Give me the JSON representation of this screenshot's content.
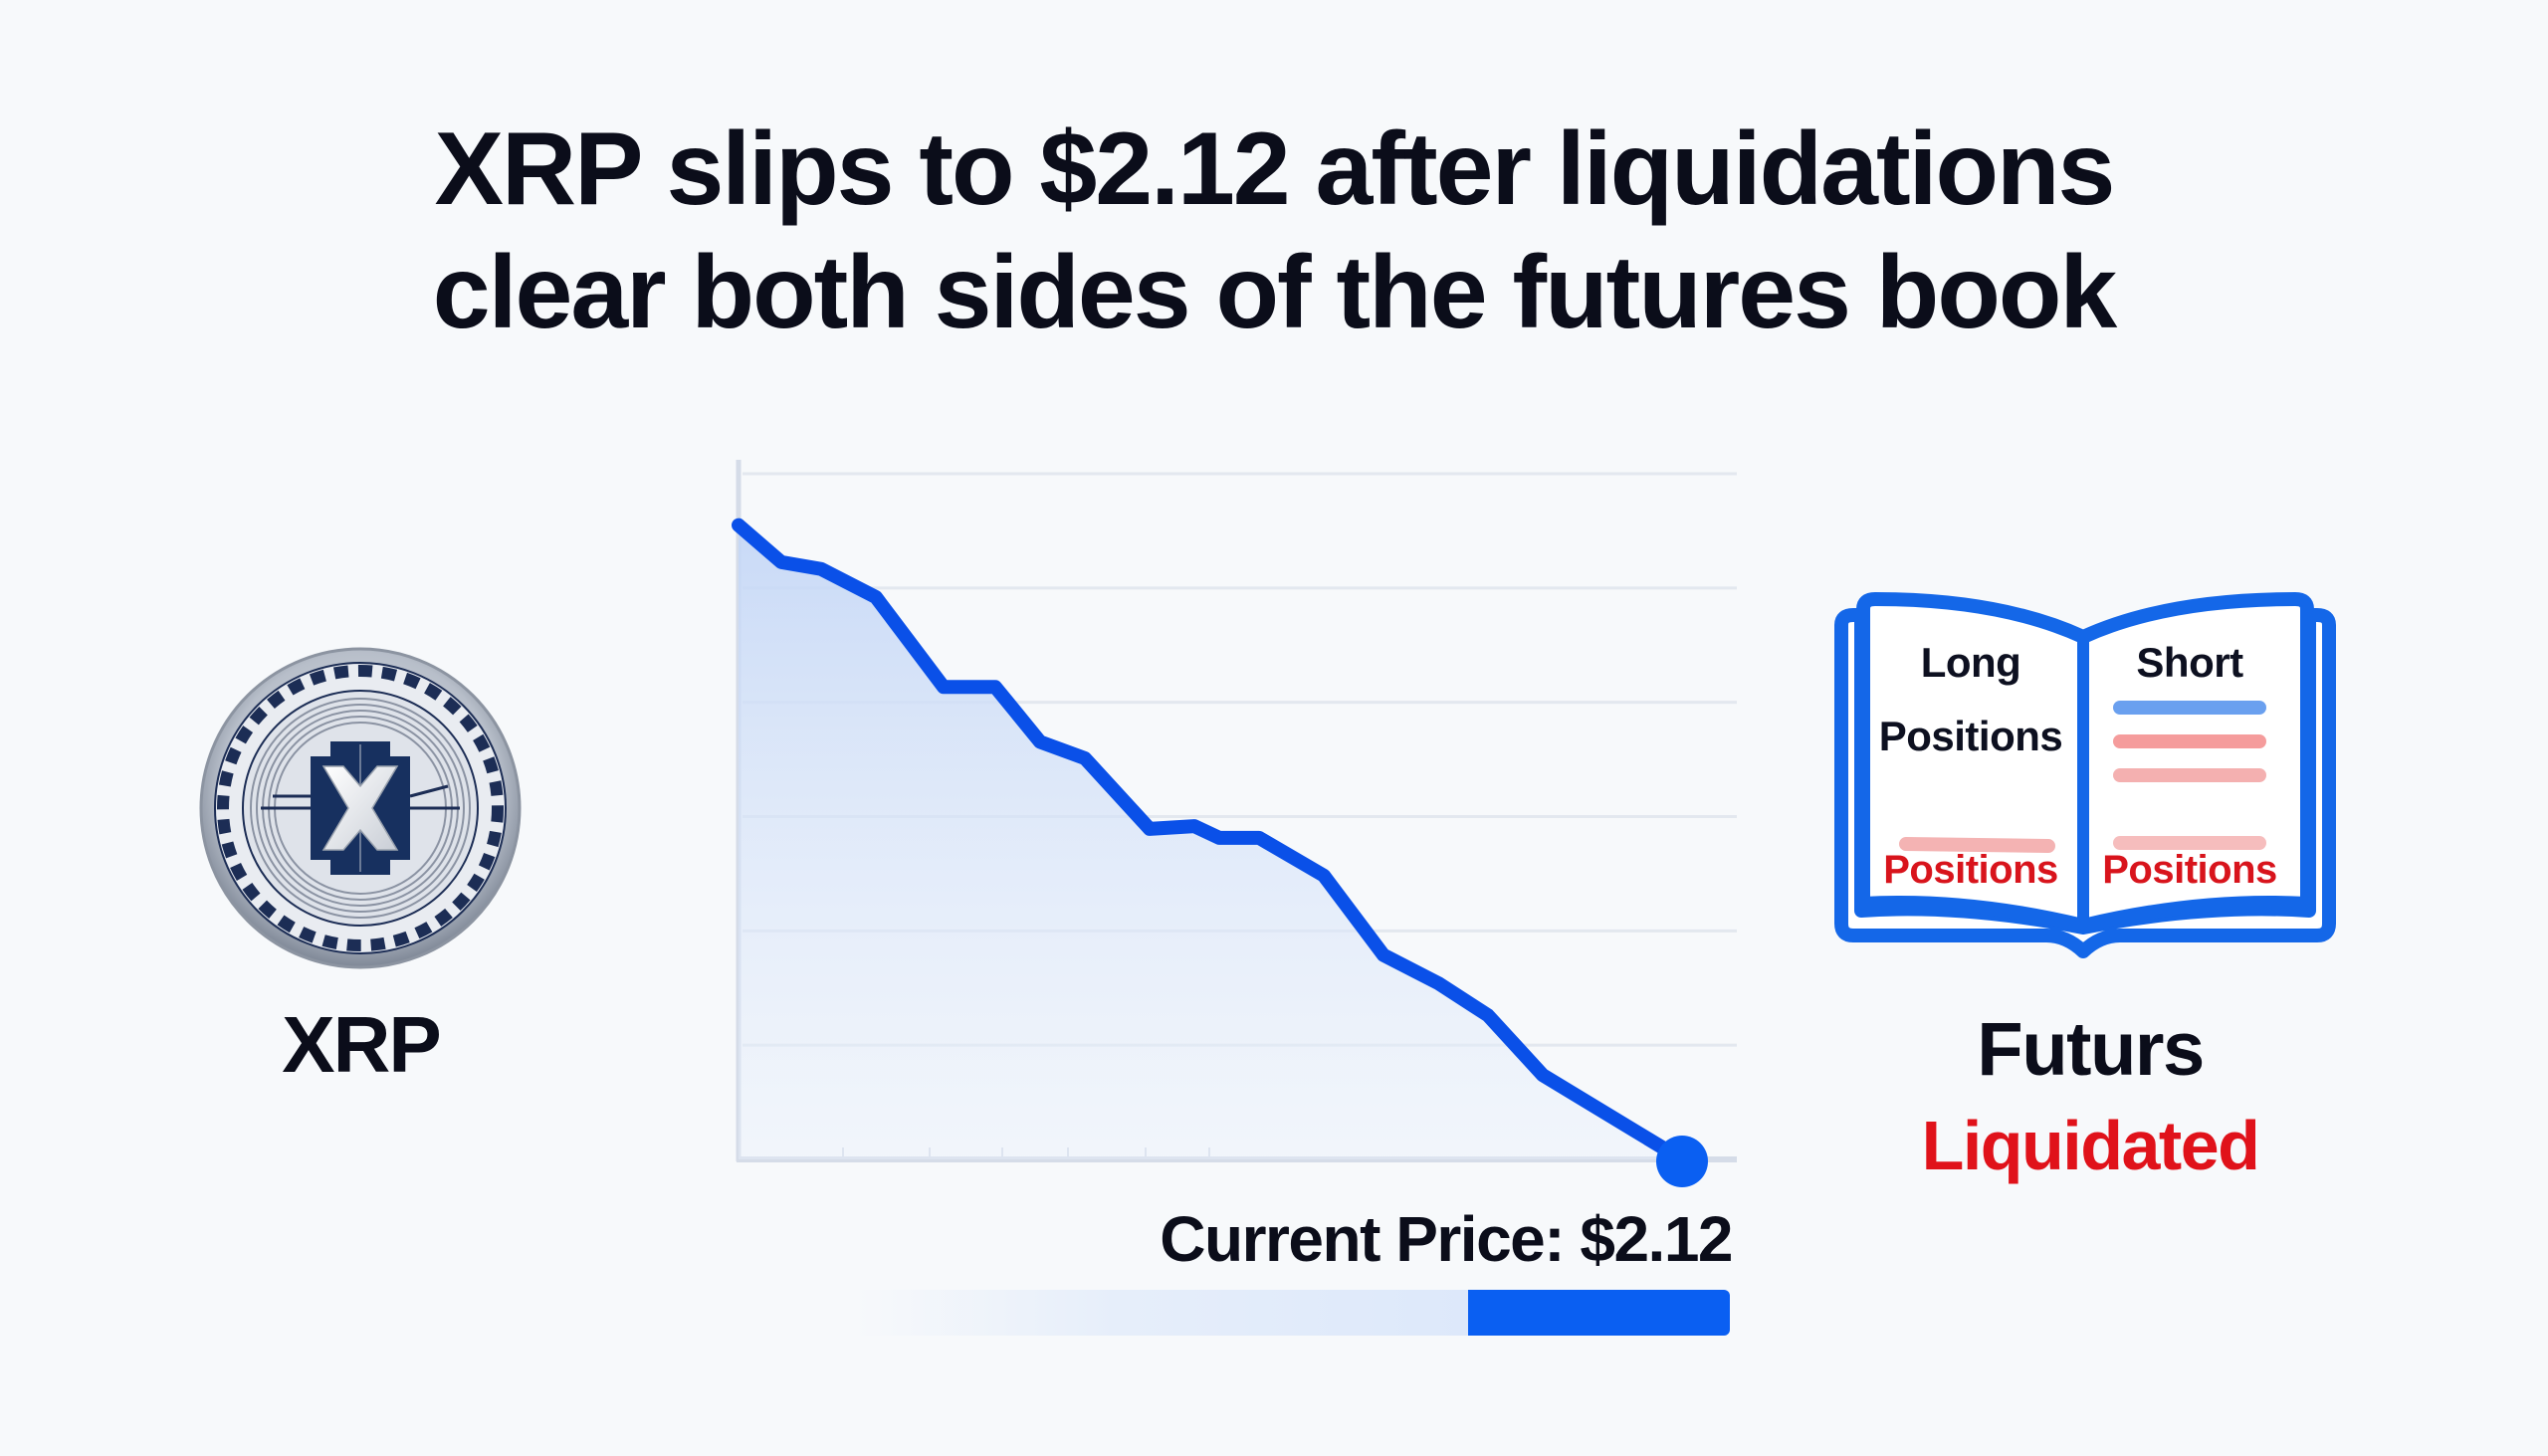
{
  "headline": {
    "line1": "XRP slips to $2.12 after liquidations",
    "line2": "clear both sides of the futures book"
  },
  "coin": {
    "icon": "xrp-coin-icon",
    "label": "XRP"
  },
  "price": {
    "label": "Current Price: $2.12",
    "value": "$2.12",
    "bar_fill_fraction": 0.3
  },
  "book": {
    "icon": "open-book-icon",
    "left_page": {
      "title_line1": "Long",
      "title_line2": "Positions",
      "footer": "Positions"
    },
    "right_page": {
      "title": "Short",
      "footer": "Positions"
    }
  },
  "futures": {
    "label": "Futurs",
    "status": "Liquidated"
  },
  "colors": {
    "background": "#f7f9fb",
    "line": "#0a50e8",
    "area_fill": "#c9dbf7",
    "grid": "#e3e8ef",
    "axis": "#d5dce8",
    "accent_blue": "#0a5ff2",
    "liquidated_red": "#e0121a",
    "text_dark": "#0b0d1a"
  },
  "chart_data": {
    "type": "line",
    "title": "",
    "xlabel": "",
    "ylabel": "",
    "x": [
      0,
      1,
      2,
      3,
      4,
      5,
      6,
      7,
      8,
      9,
      10,
      11,
      12,
      13,
      14,
      15,
      16,
      17
    ],
    "series": [
      {
        "name": "XRP price (relative index, unlabeled axis)",
        "values": [
          92.5,
          87.1,
          86.1,
          82.0,
          68.9,
          68.9,
          60.9,
          58.5,
          48.2,
          48.6,
          46.9,
          46.9,
          41.4,
          29.8,
          25.7,
          21.0,
          12.3,
          0.0
        ]
      }
    ],
    "annotations": [
      "Current Price: $2.12 (end point marker)"
    ],
    "ylim": [
      0,
      100
    ],
    "grid": true,
    "gridlines_horizontal": 6,
    "fill_under_line": true,
    "legend": null,
    "trend": "downward"
  }
}
